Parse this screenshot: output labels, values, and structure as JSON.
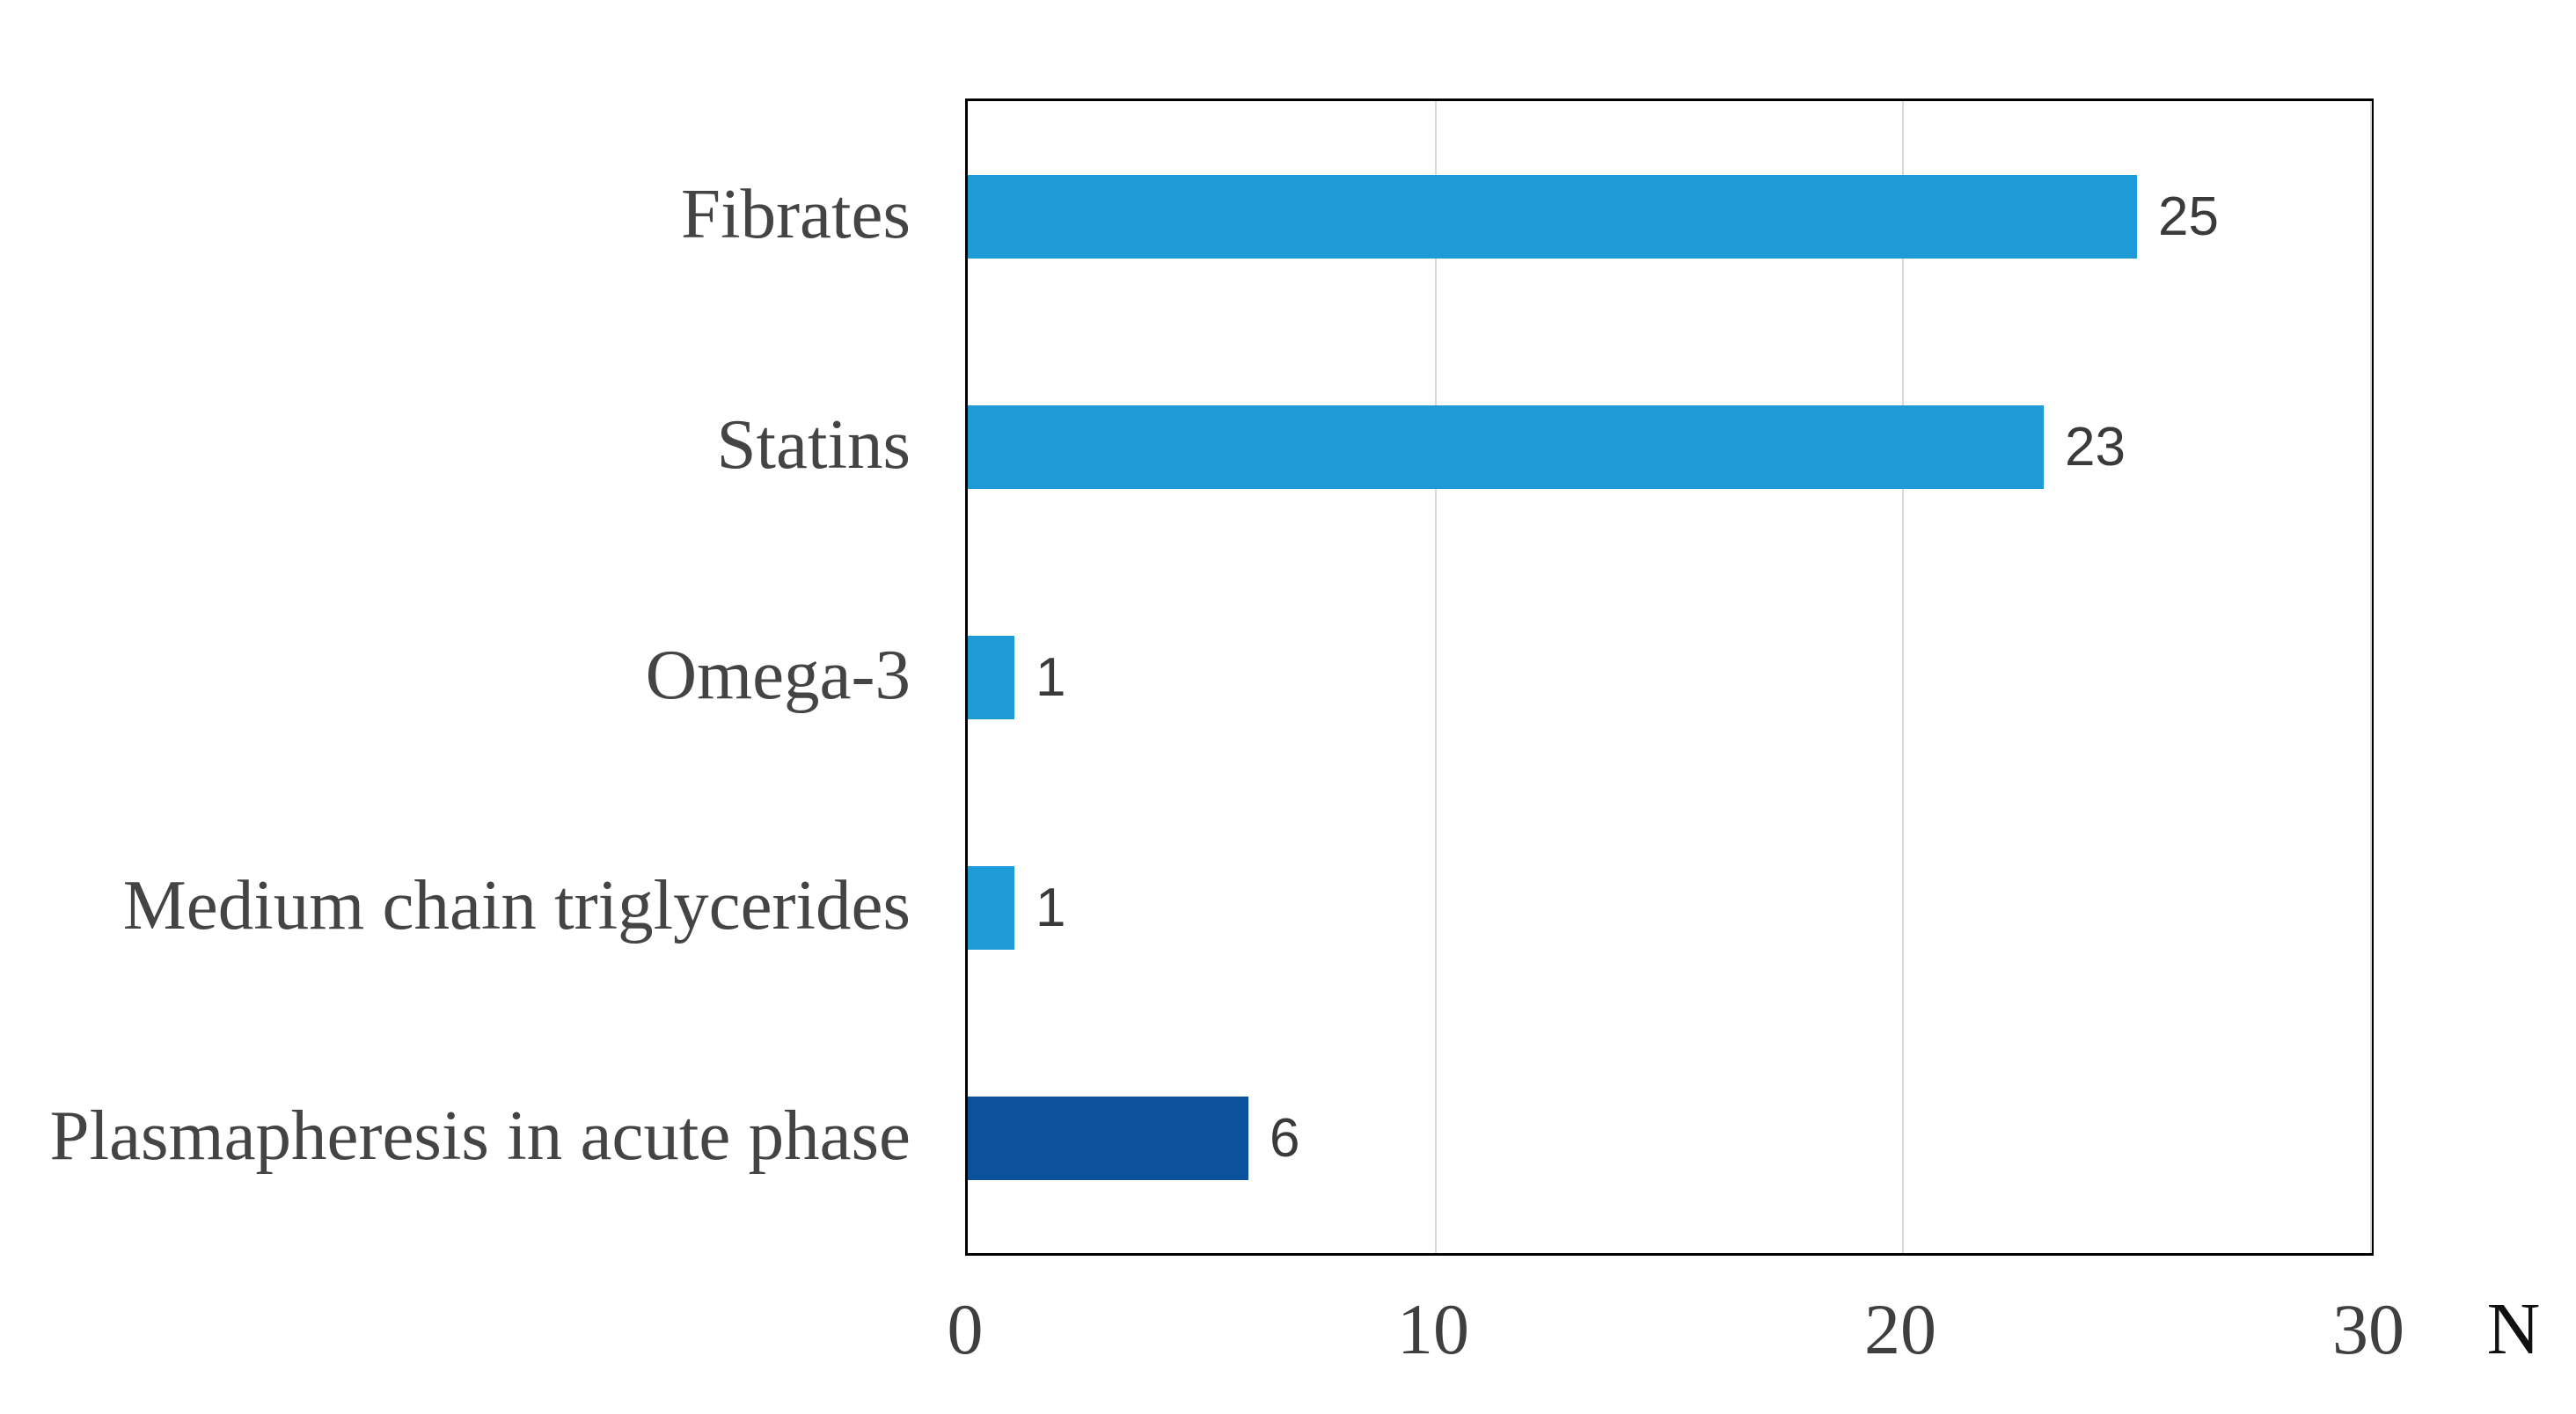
{
  "chart_data": {
    "type": "bar",
    "orientation": "horizontal",
    "title": "",
    "categories": [
      "Fibrates",
      "Statins",
      "Omega-3",
      "Medium chain triglycerides",
      "Plasmapheresis in acute phase"
    ],
    "values": [
      25,
      23,
      1,
      1,
      6
    ],
    "data_labels": [
      "25",
      "23",
      "1",
      "1",
      "6"
    ],
    "bar_colors": [
      "#1E9BD7",
      "#1E9BD7",
      "#1E9BD7",
      "#1E9BD7",
      "#0B519C"
    ],
    "xlabel": "N",
    "ylabel": "",
    "xlim": [
      0,
      30
    ],
    "xticks": [
      "0",
      "10",
      "20",
      "30"
    ],
    "xtick_values": [
      0,
      10,
      20,
      30
    ],
    "grid": "vertical gridlines at 10, 20, 30",
    "legend_position": "none"
  },
  "colors": {
    "bar_default": "#1E9BD7",
    "bar_highlight": "#0B519C",
    "gridline": "#D9D9D9",
    "plot_border": "#000000",
    "category_text": "#444444",
    "tick_text": "#3F3F3F",
    "value_text": "#3A3A3A",
    "axis_unit_text": "#111111",
    "background": "#FFFFFF"
  }
}
